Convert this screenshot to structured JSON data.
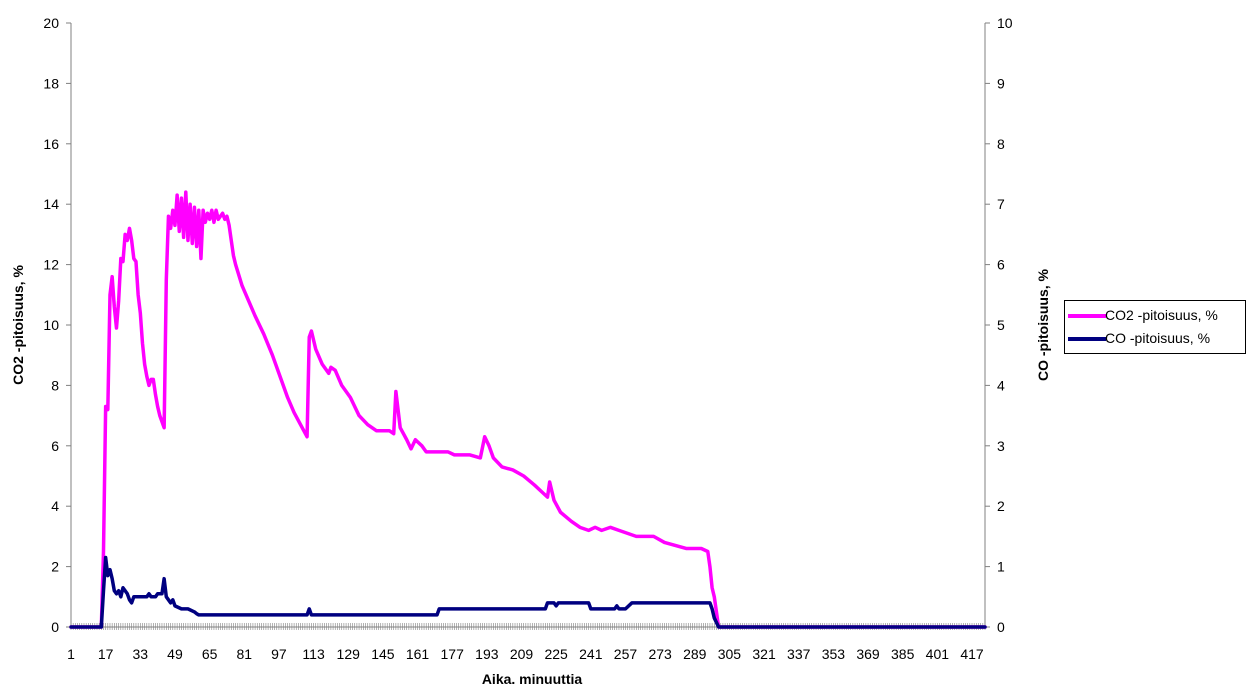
{
  "chart_data": {
    "type": "line",
    "xlabel": "Aika. minuuttia",
    "ylabel_left": "CO2 -pitoisuus, %",
    "ylabel_right": "CO -pitoisuus, %",
    "xlim": [
      1,
      423
    ],
    "ylim_left": [
      0,
      20
    ],
    "ylim_right": [
      0,
      10
    ],
    "x_tick_labels": [
      "1",
      "17",
      "33",
      "49",
      "65",
      "81",
      "97",
      "113",
      "129",
      "145",
      "161",
      "177",
      "193",
      "209",
      "225",
      "241",
      "257",
      "273",
      "289",
      "305",
      "321",
      "337",
      "353",
      "369",
      "385",
      "401",
      "417"
    ],
    "y_left_tick_labels": [
      "0",
      "2",
      "4",
      "6",
      "8",
      "10",
      "12",
      "14",
      "16",
      "18",
      "20"
    ],
    "y_right_tick_labels": [
      "0",
      "1",
      "2",
      "3",
      "4",
      "5",
      "6",
      "7",
      "8",
      "9",
      "10"
    ],
    "grid": false,
    "legend_position": "right",
    "series": [
      {
        "name": "CO2 -pitoisuus, %",
        "axis": "left",
        "color": "#ff00ff",
        "points": [
          [
            1,
            0
          ],
          [
            15,
            0
          ],
          [
            16,
            2.5
          ],
          [
            17,
            7.3
          ],
          [
            18,
            7.2
          ],
          [
            19,
            11.0
          ],
          [
            20,
            11.6
          ],
          [
            21,
            10.6
          ],
          [
            22,
            9.9
          ],
          [
            23,
            10.8
          ],
          [
            24,
            12.2
          ],
          [
            25,
            12.1
          ],
          [
            26,
            13.0
          ],
          [
            27,
            12.8
          ],
          [
            28,
            13.2
          ],
          [
            29,
            12.8
          ],
          [
            30,
            12.2
          ],
          [
            31,
            12.1
          ],
          [
            32,
            11.0
          ],
          [
            33,
            10.4
          ],
          [
            34,
            9.4
          ],
          [
            35,
            8.7
          ],
          [
            36,
            8.3
          ],
          [
            37,
            8.0
          ],
          [
            38,
            8.2
          ],
          [
            39,
            8.2
          ],
          [
            40,
            7.7
          ],
          [
            41,
            7.3
          ],
          [
            42,
            7.0
          ],
          [
            43,
            6.8
          ],
          [
            44,
            6.6
          ],
          [
            45,
            11.5
          ],
          [
            46,
            13.6
          ],
          [
            47,
            13.2
          ],
          [
            48,
            13.8
          ],
          [
            49,
            13.3
          ],
          [
            50,
            14.3
          ],
          [
            51,
            13.1
          ],
          [
            52,
            14.2
          ],
          [
            53,
            12.9
          ],
          [
            54,
            14.4
          ],
          [
            55,
            12.8
          ],
          [
            56,
            14.0
          ],
          [
            57,
            12.7
          ],
          [
            58,
            13.9
          ],
          [
            59,
            12.6
          ],
          [
            60,
            13.8
          ],
          [
            61,
            12.2
          ],
          [
            62,
            13.8
          ],
          [
            63,
            13.4
          ],
          [
            64,
            13.7
          ],
          [
            65,
            13.5
          ],
          [
            66,
            13.8
          ],
          [
            67,
            13.4
          ],
          [
            68,
            13.8
          ],
          [
            69,
            13.5
          ],
          [
            70,
            13.6
          ],
          [
            71,
            13.7
          ],
          [
            72,
            13.5
          ],
          [
            73,
            13.6
          ],
          [
            74,
            13.3
          ],
          [
            75,
            12.8
          ],
          [
            76,
            12.3
          ],
          [
            77,
            12.0
          ],
          [
            80,
            11.3
          ],
          [
            83,
            10.8
          ],
          [
            86,
            10.3
          ],
          [
            90,
            9.7
          ],
          [
            94,
            9.0
          ],
          [
            98,
            8.2
          ],
          [
            101,
            7.6
          ],
          [
            104,
            7.1
          ],
          [
            107,
            6.7
          ],
          [
            110,
            6.3
          ],
          [
            111,
            9.6
          ],
          [
            112,
            9.8
          ],
          [
            113,
            9.5
          ],
          [
            114,
            9.2
          ],
          [
            117,
            8.7
          ],
          [
            120,
            8.4
          ],
          [
            121,
            8.6
          ],
          [
            123,
            8.5
          ],
          [
            126,
            8.0
          ],
          [
            130,
            7.6
          ],
          [
            134,
            7.0
          ],
          [
            138,
            6.7
          ],
          [
            142,
            6.5
          ],
          [
            148,
            6.5
          ],
          [
            150,
            6.4
          ],
          [
            151,
            7.8
          ],
          [
            152,
            7.2
          ],
          [
            153,
            6.6
          ],
          [
            156,
            6.2
          ],
          [
            158,
            5.9
          ],
          [
            160,
            6.2
          ],
          [
            163,
            6.0
          ],
          [
            165,
            5.8
          ],
          [
            175,
            5.8
          ],
          [
            178,
            5.7
          ],
          [
            185,
            5.7
          ],
          [
            190,
            5.6
          ],
          [
            192,
            6.3
          ],
          [
            194,
            6.0
          ],
          [
            196,
            5.6
          ],
          [
            200,
            5.3
          ],
          [
            205,
            5.2
          ],
          [
            210,
            5.0
          ],
          [
            215,
            4.7
          ],
          [
            218,
            4.5
          ],
          [
            221,
            4.3
          ],
          [
            222,
            4.8
          ],
          [
            224,
            4.2
          ],
          [
            227,
            3.8
          ],
          [
            232,
            3.5
          ],
          [
            236,
            3.3
          ],
          [
            240,
            3.2
          ],
          [
            243,
            3.3
          ],
          [
            246,
            3.2
          ],
          [
            250,
            3.3
          ],
          [
            254,
            3.2
          ],
          [
            258,
            3.1
          ],
          [
            262,
            3.0
          ],
          [
            270,
            3.0
          ],
          [
            275,
            2.8
          ],
          [
            280,
            2.7
          ],
          [
            285,
            2.6
          ],
          [
            292,
            2.6
          ],
          [
            295,
            2.5
          ],
          [
            296,
            2.0
          ],
          [
            297,
            1.3
          ],
          [
            298,
            1.0
          ],
          [
            299,
            0.5
          ],
          [
            300,
            0
          ],
          [
            423,
            0
          ]
        ]
      },
      {
        "name": "CO -pitoisuus, %",
        "axis": "right",
        "color": "#000080",
        "points": [
          [
            1,
            0
          ],
          [
            15,
            0
          ],
          [
            16,
            0.6
          ],
          [
            17,
            1.15
          ],
          [
            18,
            0.85
          ],
          [
            19,
            0.95
          ],
          [
            20,
            0.8
          ],
          [
            21,
            0.6
          ],
          [
            22,
            0.55
          ],
          [
            23,
            0.6
          ],
          [
            24,
            0.5
          ],
          [
            25,
            0.65
          ],
          [
            26,
            0.6
          ],
          [
            27,
            0.55
          ],
          [
            28,
            0.45
          ],
          [
            29,
            0.4
          ],
          [
            30,
            0.5
          ],
          [
            36,
            0.5
          ],
          [
            37,
            0.55
          ],
          [
            38,
            0.5
          ],
          [
            40,
            0.5
          ],
          [
            41,
            0.55
          ],
          [
            43,
            0.55
          ],
          [
            44,
            0.8
          ],
          [
            45,
            0.5
          ],
          [
            46,
            0.45
          ],
          [
            47,
            0.4
          ],
          [
            48,
            0.45
          ],
          [
            49,
            0.35
          ],
          [
            52,
            0.3
          ],
          [
            55,
            0.3
          ],
          [
            58,
            0.25
          ],
          [
            59,
            0.22
          ],
          [
            60,
            0.2
          ],
          [
            110,
            0.2
          ],
          [
            111,
            0.3
          ],
          [
            112,
            0.2
          ],
          [
            170,
            0.2
          ],
          [
            171,
            0.3
          ],
          [
            220,
            0.3
          ],
          [
            221,
            0.4
          ],
          [
            224,
            0.4
          ],
          [
            225,
            0.35
          ],
          [
            226,
            0.4
          ],
          [
            240,
            0.4
          ],
          [
            241,
            0.3
          ],
          [
            252,
            0.3
          ],
          [
            253,
            0.35
          ],
          [
            254,
            0.3
          ],
          [
            257,
            0.3
          ],
          [
            260,
            0.4
          ],
          [
            296,
            0.4
          ],
          [
            297,
            0.3
          ],
          [
            298,
            0.15
          ],
          [
            300,
            0
          ],
          [
            423,
            0
          ]
        ]
      }
    ]
  }
}
